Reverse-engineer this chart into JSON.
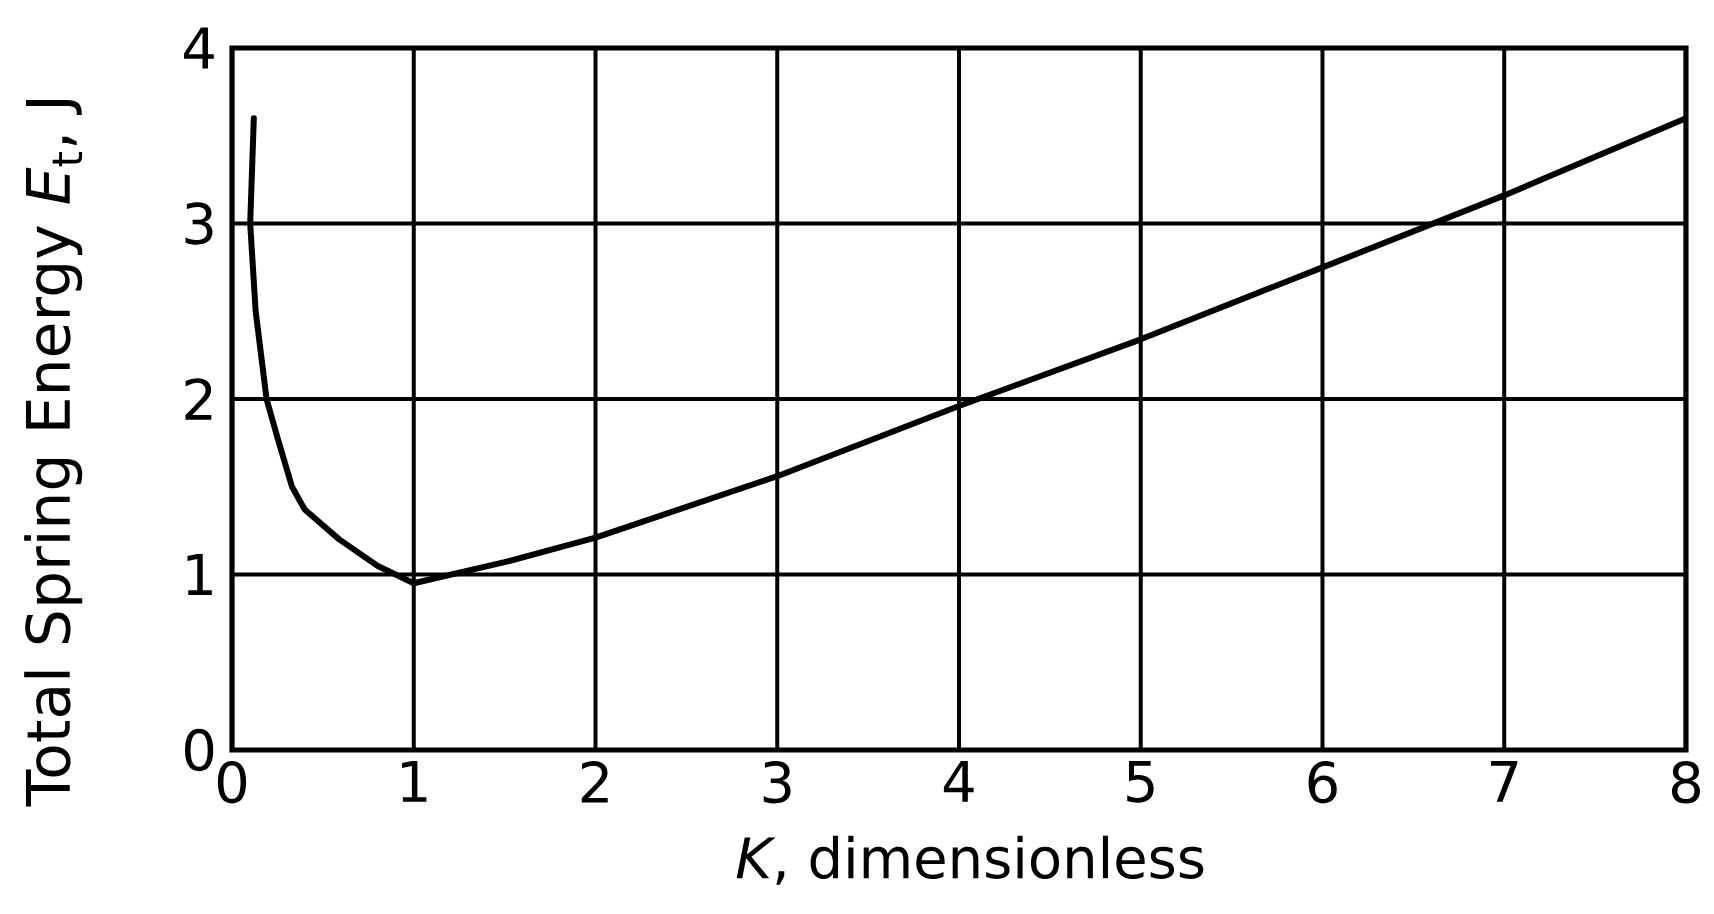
{
  "chart_data": {
    "type": "line",
    "xlabel": "*K*, dimensionless",
    "ylabel": "Total Spring Energy *E*$_{t}$, J",
    "x": [
      0.12,
      0.1,
      0.13,
      0.19,
      0.25,
      0.33,
      0.4,
      0.5,
      0.59,
      0.8,
      1,
      1.5,
      2,
      3,
      4,
      5,
      6,
      7,
      8
    ],
    "values": [
      3.6,
      3.0,
      2.5,
      2.0,
      1.78,
      1.5,
      1.37,
      1.28,
      1.2,
      1.05,
      0.95,
      1.07,
      1.21,
      1.56,
      1.96,
      2.34,
      2.75,
      3.16,
      3.6
    ],
    "color": "#000000",
    "line_style": "solid",
    "grid": true,
    "xlim": [
      0,
      8
    ],
    "ylim": [
      0,
      4
    ],
    "xticks": [
      0,
      1,
      2,
      3,
      4,
      5,
      6,
      7,
      8
    ],
    "yticks": [
      0,
      1,
      2,
      3,
      4
    ]
  }
}
